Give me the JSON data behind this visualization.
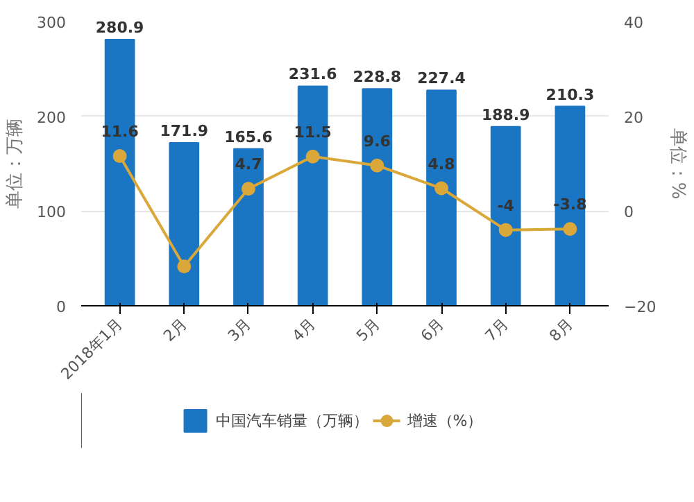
{
  "chart_data": {
    "type": "bar",
    "categories": [
      "2018年1月",
      "2月",
      "3月",
      "4月",
      "5月",
      "6月",
      "7月",
      "8月"
    ],
    "ylabel": "单位：万辆",
    "y2label": "单位：%",
    "ylim": [
      0,
      300
    ],
    "yticks": [
      0,
      100,
      200,
      300
    ],
    "y2lim": [
      -20,
      40
    ],
    "y2ticks": [
      -20,
      0,
      20,
      40
    ],
    "grid": "y",
    "legend": "bottom",
    "series": [
      {
        "name": "中国汽车销量（万辆）",
        "color": "#1a75c2",
        "values": [
          280.9,
          171.9,
          165.6,
          231.6,
          228.8,
          227.4,
          188.9,
          210.3
        ],
        "value_labels": [
          "280.9",
          "171.9",
          "165.6",
          "231.6",
          "228.8",
          "227.4",
          "188.9",
          "210.3"
        ]
      },
      {
        "name": "增速（%）",
        "type": "line",
        "axis": "y2",
        "color": "#d9a73a",
        "marker": "circle",
        "values": [
          11.6,
          -11.7,
          4.7,
          11.5,
          9.6,
          4.8,
          -4,
          -3.8
        ],
        "value_labels": [
          "11.6",
          null,
          "4.7",
          "11.5",
          "9.6",
          "4.8",
          "-4",
          "-3.8"
        ]
      }
    ]
  }
}
